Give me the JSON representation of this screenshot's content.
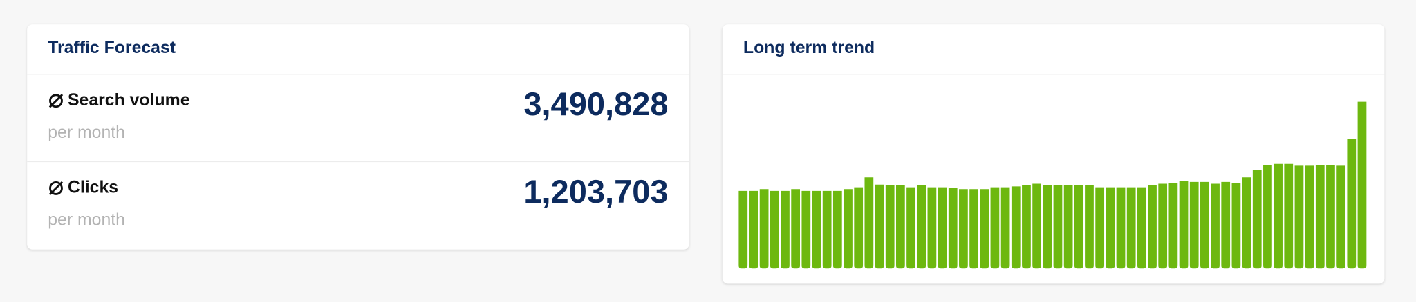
{
  "forecast": {
    "title": "Traffic Forecast",
    "rows": [
      {
        "label": "Search volume",
        "sub": "per month",
        "value": "3,490,828"
      },
      {
        "label": "Clicks",
        "sub": "per month",
        "value": "1,203,703"
      }
    ]
  },
  "chart_data": {
    "type": "bar",
    "title": "Long term trend",
    "color": "#6db80f",
    "values": [
      86,
      86,
      88,
      86,
      86,
      88,
      86,
      86,
      86,
      86,
      88,
      90,
      101,
      93,
      92,
      92,
      90,
      92,
      90,
      90,
      89,
      88,
      88,
      88,
      90,
      90,
      91,
      92,
      94,
      92,
      92,
      92,
      92,
      92,
      90,
      90,
      90,
      90,
      90,
      92,
      94,
      95,
      97,
      96,
      96,
      94,
      96,
      95,
      101,
      109,
      115,
      116,
      116,
      114,
      114,
      115,
      115,
      114,
      144,
      185
    ]
  }
}
